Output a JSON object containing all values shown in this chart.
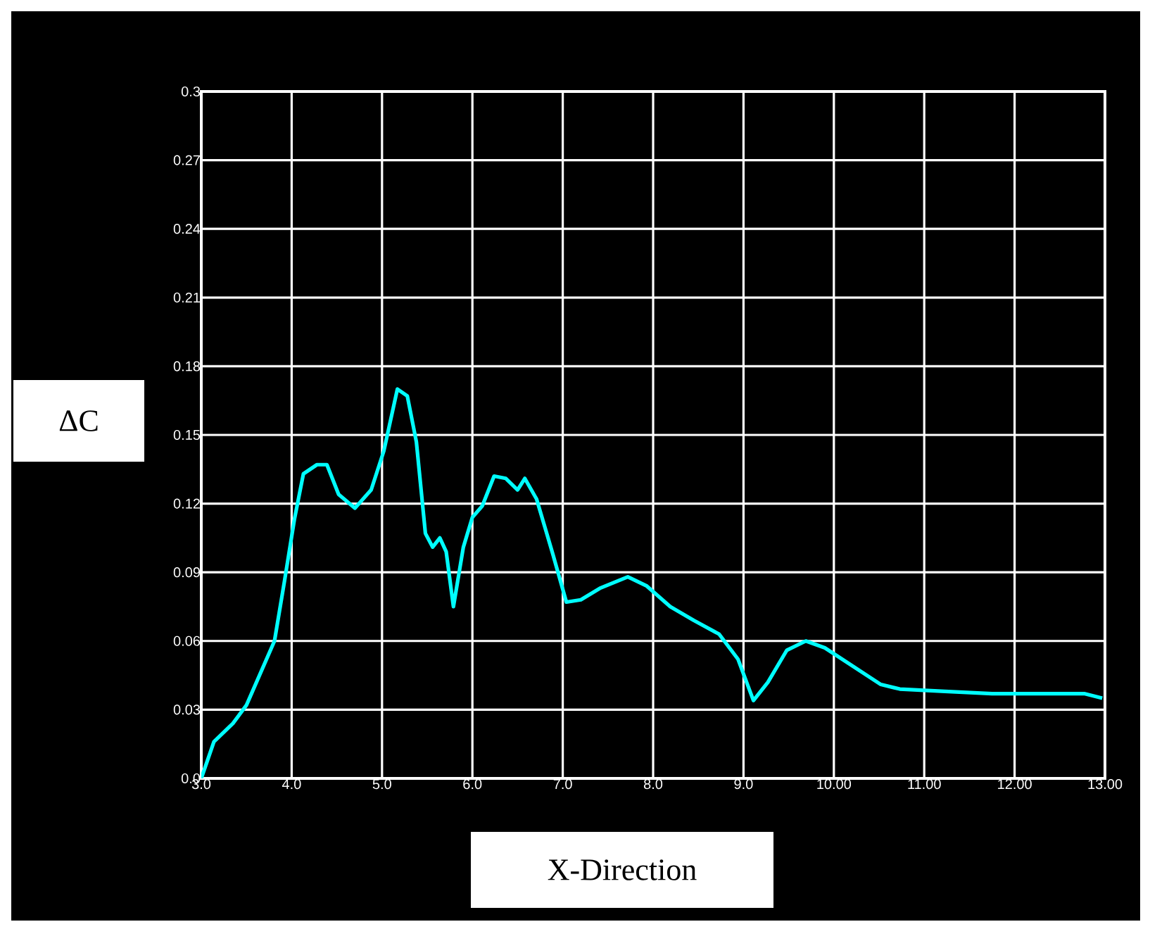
{
  "chart_data": {
    "type": "line",
    "xlabel": "X-Direction",
    "ylabel": "ΔC",
    "xlim": [
      3,
      13
    ],
    "ylim": [
      0,
      0.3
    ],
    "xticks": [
      {
        "value": 3,
        "label": "3.0"
      },
      {
        "value": 4,
        "label": "4.0"
      },
      {
        "value": 5,
        "label": "5.0"
      },
      {
        "value": 6,
        "label": "6.0"
      },
      {
        "value": 7,
        "label": "7.0"
      },
      {
        "value": 8,
        "label": "8.0"
      },
      {
        "value": 9,
        "label": "9.0"
      },
      {
        "value": 10,
        "label": "10.00"
      },
      {
        "value": 11,
        "label": "11.00"
      },
      {
        "value": 12,
        "label": "12.00"
      },
      {
        "value": 13,
        "label": "13.00"
      }
    ],
    "yticks": [
      {
        "value": 0,
        "label": "0.0"
      },
      0.03,
      0.06,
      0.09,
      0.12,
      0.15,
      0.18,
      0.21,
      0.24,
      0.27,
      0.3
    ],
    "grid": true,
    "marker": "none",
    "line_style": "solid",
    "series": [
      {
        "color": "#00ffff",
        "x": [
          3.0,
          3.14,
          3.35,
          3.5,
          3.81,
          3.92,
          4.03,
          4.13,
          4.28,
          4.39,
          4.52,
          4.7,
          4.88,
          5.02,
          5.17,
          5.28,
          5.38,
          5.48,
          5.56,
          5.64,
          5.71,
          5.79,
          5.9,
          6.0,
          6.11,
          6.24,
          6.37,
          6.5,
          6.58,
          6.71,
          6.89,
          7.04,
          7.2,
          7.41,
          7.72,
          7.93,
          8.19,
          8.45,
          8.73,
          8.94,
          9.11,
          9.27,
          9.48,
          9.69,
          9.9,
          10.21,
          10.52,
          10.73,
          11.23,
          11.75,
          12.77,
          12.97
        ],
        "values": [
          0.0,
          0.016,
          0.024,
          0.032,
          0.06,
          0.086,
          0.113,
          0.133,
          0.137,
          0.137,
          0.124,
          0.118,
          0.126,
          0.143,
          0.17,
          0.167,
          0.147,
          0.107,
          0.101,
          0.105,
          0.099,
          0.075,
          0.101,
          0.114,
          0.119,
          0.132,
          0.131,
          0.126,
          0.131,
          0.122,
          0.098,
          0.077,
          0.078,
          0.083,
          0.088,
          0.084,
          0.075,
          0.069,
          0.063,
          0.052,
          0.034,
          0.042,
          0.056,
          0.06,
          0.057,
          0.049,
          0.041,
          0.039,
          0.038,
          0.037,
          0.037,
          0.035
        ]
      }
    ]
  }
}
